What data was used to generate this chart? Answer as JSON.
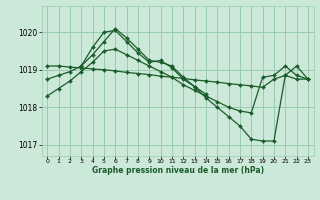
{
  "title": "Graphe pression niveau de la mer (hPa)",
  "bg_color": "#cce8d8",
  "grid_color": "#99ccb0",
  "line_color": "#1a5c2a",
  "xlim": [
    -0.5,
    23.5
  ],
  "ylim": [
    1016.7,
    1020.7
  ],
  "yticks": [
    1017,
    1018,
    1019,
    1020
  ],
  "xticks": [
    0,
    1,
    2,
    3,
    4,
    5,
    6,
    7,
    8,
    9,
    10,
    11,
    12,
    13,
    14,
    15,
    16,
    17,
    18,
    19,
    20,
    21,
    22,
    23
  ],
  "series": [
    {
      "x": [
        0,
        1,
        2,
        3,
        4,
        5,
        6,
        7,
        8,
        9,
        10,
        11,
        12,
        13,
        14
      ],
      "y": [
        1018.75,
        1018.85,
        1018.95,
        1019.1,
        1019.6,
        1020.0,
        1020.05,
        1019.75,
        1019.45,
        1019.2,
        1019.25,
        1019.05,
        1018.75,
        1018.55,
        1018.35
      ]
    },
    {
      "x": [
        0,
        1,
        2,
        3,
        4,
        5,
        6,
        7,
        8,
        9,
        10,
        11,
        12,
        13,
        14,
        15,
        16,
        17,
        18,
        19,
        20,
        21,
        22,
        23
      ],
      "y": [
        1019.1,
        1019.1,
        1019.07,
        1019.05,
        1019.02,
        1019.0,
        1018.97,
        1018.93,
        1018.9,
        1018.87,
        1018.83,
        1018.8,
        1018.77,
        1018.73,
        1018.7,
        1018.67,
        1018.63,
        1018.6,
        1018.57,
        1018.53,
        1018.75,
        1018.85,
        1018.75,
        1018.75
      ]
    },
    {
      "x": [
        3,
        4,
        5,
        6,
        7,
        8,
        9,
        10,
        11,
        12,
        13,
        14,
        15,
        16,
        17,
        18,
        19,
        20,
        21,
        22,
        23
      ],
      "y": [
        1019.1,
        1019.4,
        1019.75,
        1020.1,
        1019.85,
        1019.55,
        1019.25,
        1019.2,
        1019.1,
        1018.8,
        1018.55,
        1018.25,
        1018.0,
        1017.75,
        1017.5,
        1017.15,
        1017.1,
        1017.1,
        1018.85,
        1019.1,
        1018.75
      ]
    },
    {
      "x": [
        0,
        1,
        2,
        3,
        4,
        5,
        6,
        7,
        8,
        9,
        10,
        11,
        12,
        13,
        14,
        15,
        16,
        17,
        18,
        19,
        20,
        21,
        22,
        23
      ],
      "y": [
        1018.3,
        1018.5,
        1018.7,
        1018.95,
        1019.2,
        1019.5,
        1019.55,
        1019.4,
        1019.25,
        1019.1,
        1018.95,
        1018.8,
        1018.6,
        1018.45,
        1018.3,
        1018.15,
        1018.0,
        1017.9,
        1017.85,
        1018.8,
        1018.85,
        1019.1,
        1018.85,
        1018.75
      ]
    }
  ]
}
